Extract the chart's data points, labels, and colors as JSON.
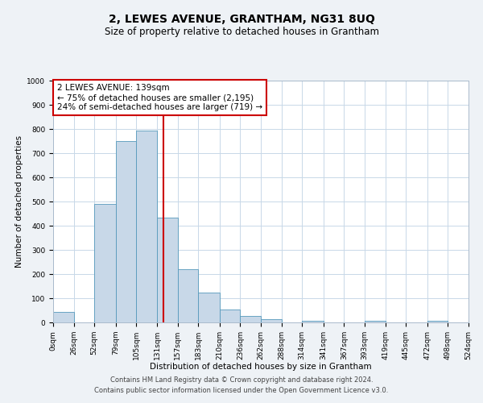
{
  "title": "2, LEWES AVENUE, GRANTHAM, NG31 8UQ",
  "subtitle": "Size of property relative to detached houses in Grantham",
  "xlabel": "Distribution of detached houses by size in Grantham",
  "ylabel": "Number of detached properties",
  "bin_edges": [
    0,
    26,
    52,
    79,
    105,
    131,
    157,
    183,
    210,
    236,
    262,
    288,
    314,
    341,
    367,
    393,
    419,
    445,
    472,
    498,
    524
  ],
  "bar_heights": [
    45,
    0,
    490,
    750,
    795,
    435,
    220,
    125,
    55,
    28,
    15,
    0,
    8,
    0,
    0,
    8,
    0,
    0,
    8,
    0
  ],
  "bar_color": "#c8d8e8",
  "bar_edge_color": "#5599bb",
  "vline_x": 139,
  "vline_color": "#cc0000",
  "annotation_box_text": "2 LEWES AVENUE: 139sqm\n← 75% of detached houses are smaller (2,195)\n24% of semi-detached houses are larger (719) →",
  "annotation_box_color": "#cc0000",
  "ylim": [
    0,
    1000
  ],
  "yticks": [
    0,
    100,
    200,
    300,
    400,
    500,
    600,
    700,
    800,
    900,
    1000
  ],
  "x_tick_labels": [
    "0sqm",
    "26sqm",
    "52sqm",
    "79sqm",
    "105sqm",
    "131sqm",
    "157sqm",
    "183sqm",
    "210sqm",
    "236sqm",
    "262sqm",
    "288sqm",
    "314sqm",
    "341sqm",
    "367sqm",
    "393sqm",
    "419sqm",
    "445sqm",
    "472sqm",
    "498sqm",
    "524sqm"
  ],
  "footer1": "Contains HM Land Registry data © Crown copyright and database right 2024.",
  "footer2": "Contains public sector information licensed under the Open Government Licence v3.0.",
  "background_color": "#eef2f6",
  "plot_bg_color": "#ffffff",
  "grid_color": "#c8d8e8",
  "title_fontsize": 10,
  "subtitle_fontsize": 8.5,
  "axis_label_fontsize": 7.5,
  "tick_fontsize": 6.5,
  "annotation_fontsize": 7.5,
  "footer_fontsize": 6.0
}
